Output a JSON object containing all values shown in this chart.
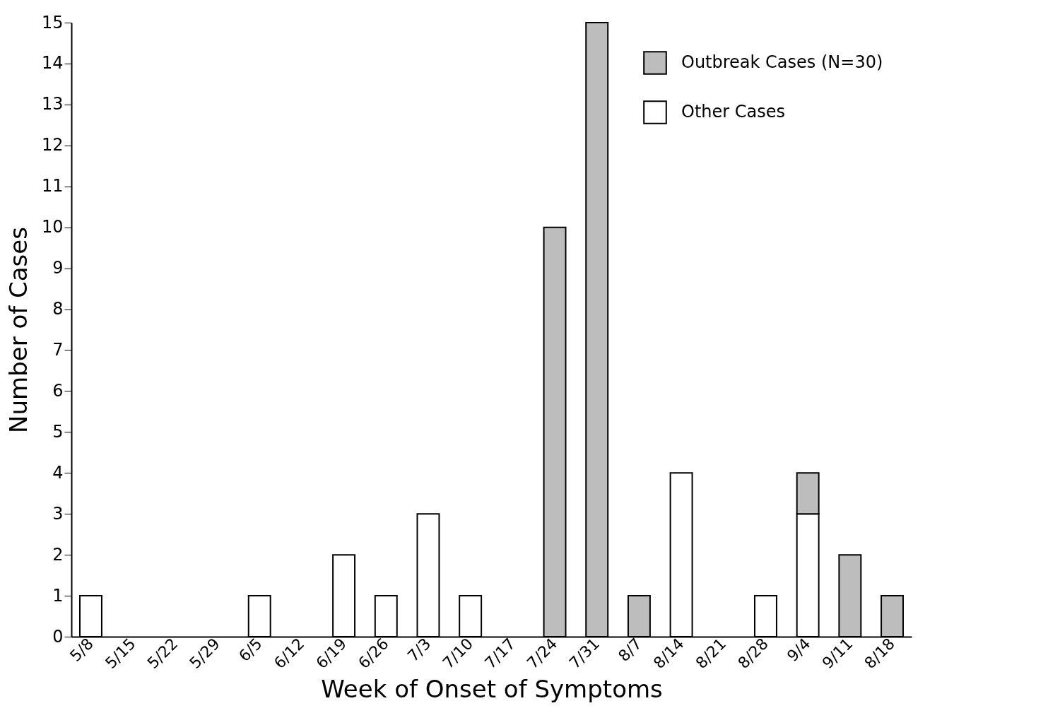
{
  "chart_data": {
    "type": "bar",
    "stacked": true,
    "xlabel": "Week of Onset of Symptoms",
    "ylabel": "Number of Cases",
    "categories": [
      "5/8",
      "5/15",
      "5/22",
      "5/29",
      "6/5",
      "6/12",
      "6/19",
      "6/26",
      "7/3",
      "7/10",
      "7/17",
      "7/24",
      "7/31",
      "8/7",
      "8/14",
      "8/21",
      "8/28",
      "9/4",
      "9/11",
      "8/18"
    ],
    "series": [
      {
        "name": "Other Cases",
        "color": "#ffffff",
        "values": [
          1,
          0,
          0,
          0,
          1,
          0,
          2,
          1,
          3,
          1,
          0,
          0,
          0,
          0,
          4,
          0,
          1,
          3,
          0,
          0
        ]
      },
      {
        "name": "Outbreak Cases (N=30)",
        "color": "#bdbdbd",
        "values": [
          0,
          0,
          0,
          0,
          0,
          0,
          0,
          0,
          0,
          0,
          0,
          10,
          15,
          1,
          0,
          0,
          0,
          1,
          2,
          1
        ]
      }
    ],
    "ylim": [
      0,
      15
    ],
    "yticks": [
      0,
      1,
      2,
      3,
      4,
      5,
      6,
      7,
      8,
      9,
      10,
      11,
      12,
      13,
      14,
      15
    ],
    "grid": false,
    "legend": "top right"
  }
}
